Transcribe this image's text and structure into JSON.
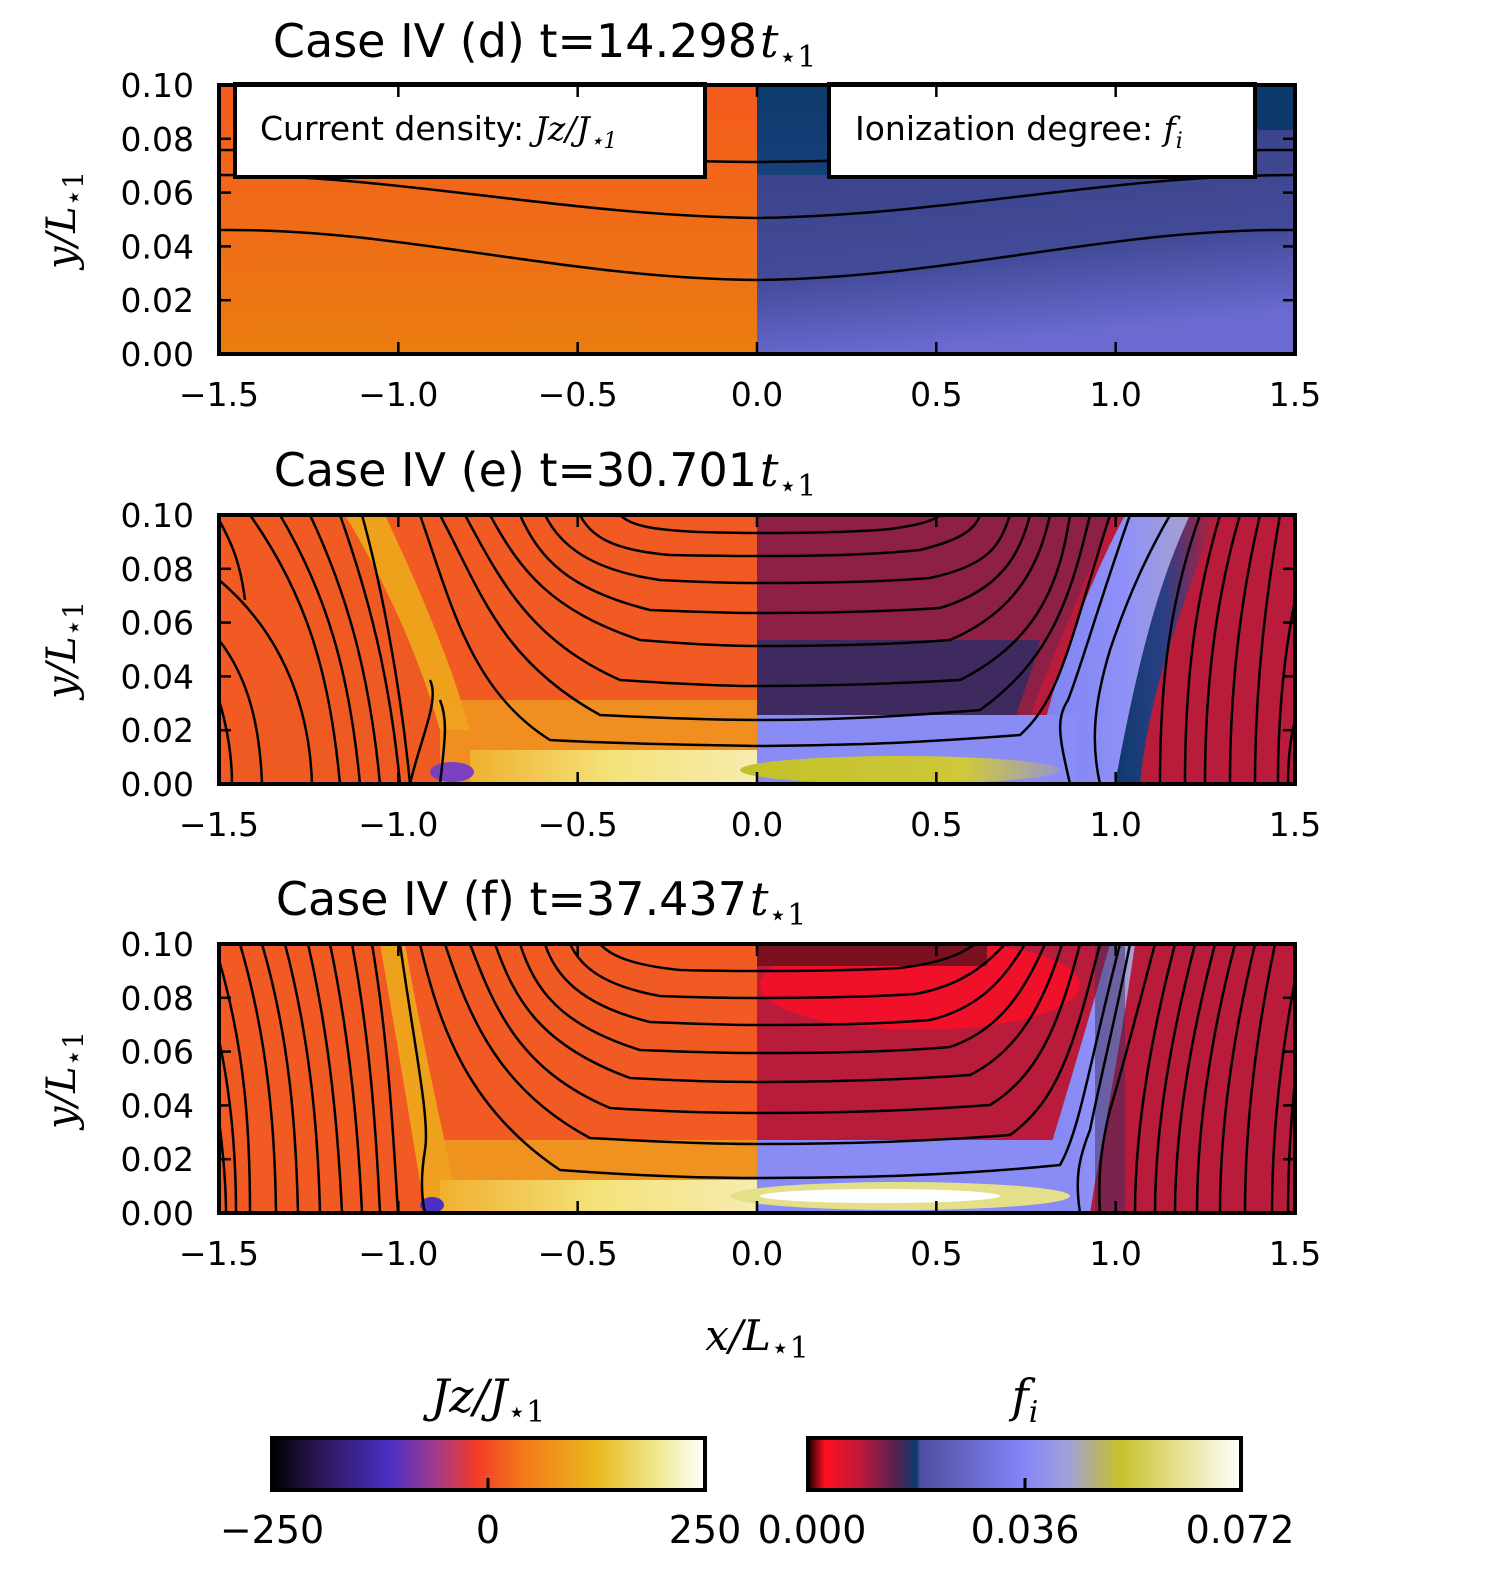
{
  "chart_data": [
    {
      "type": "heatmap",
      "panel": "d",
      "title": "Case IV (d) t=14.298",
      "title_symbol": "t⋆1",
      "ylabel": "y/L⋆1",
      "xlim": [
        -1.5,
        1.5
      ],
      "ylim": [
        0.0,
        0.1
      ],
      "xticks": [
        "−1.5",
        "−1.0",
        "−0.5",
        "0.0",
        "0.5",
        "1.0",
        "1.5"
      ],
      "yticks": [
        "0.00",
        "0.02",
        "0.04",
        "0.06",
        "0.08",
        "0.10"
      ],
      "left_half": "Current density: J_z/J_⋆1",
      "right_half": "Ionization degree: f_i",
      "annotations": [
        "Current density: Jz/J⋆1",
        "Ionization degree: fi"
      ]
    },
    {
      "type": "heatmap",
      "panel": "e",
      "title": "Case IV (e) t=30.701",
      "title_symbol": "t⋆1",
      "ylabel": "y/L⋆1",
      "xlim": [
        -1.5,
        1.5
      ],
      "ylim": [
        0.0,
        0.1
      ],
      "xticks": [
        "−1.5",
        "−1.0",
        "−0.5",
        "0.0",
        "0.5",
        "1.0",
        "1.5"
      ],
      "yticks": [
        "0.00",
        "0.02",
        "0.04",
        "0.06",
        "0.08",
        "0.10"
      ]
    },
    {
      "type": "heatmap",
      "panel": "f",
      "title": "Case IV (f) t=37.437",
      "title_symbol": "t⋆1",
      "ylabel": "y/L⋆1",
      "xlabel": "x/L⋆1",
      "xlim": [
        -1.5,
        1.5
      ],
      "ylim": [
        0.0,
        0.1
      ],
      "xticks": [
        "−1.5",
        "−1.0",
        "−0.5",
        "0.0",
        "0.5",
        "1.0",
        "1.5"
      ],
      "yticks": [
        "0.00",
        "0.02",
        "0.04",
        "0.06",
        "0.08",
        "0.10"
      ]
    }
  ],
  "colorbars": [
    {
      "label": "Jz/J⋆1",
      "ticks": [
        "−250",
        "0",
        "250"
      ],
      "range": [
        -250,
        250
      ]
    },
    {
      "label": "fi",
      "ticks": [
        "0.000",
        "0.036",
        "0.072"
      ],
      "range": [
        0.0,
        0.072
      ]
    }
  ],
  "labels": {
    "x_axis": "x/L",
    "x_sub": "⋆1",
    "y_axis": "y/L",
    "y_sub": "⋆1",
    "t_sym": "t",
    "t_sub": "⋆1",
    "box_left_text": "Current density: ",
    "box_left_math": "Jz/J",
    "box_left_sub": "⋆1",
    "box_right_text": "Ionization degree: ",
    "box_right_math": "f",
    "box_right_sub": "i",
    "cb1_label": "Jz/J",
    "cb1_sub": "⋆1",
    "cb2_label": "f",
    "cb2_sub": "i"
  },
  "colors": {
    "jz_bg": "#f1601d",
    "fi_bg_d": "#3d4a92",
    "fi_bg_ef": "#b81c3a",
    "ion_blue": "#8a8cf5",
    "yellow": "#c7c23a"
  }
}
